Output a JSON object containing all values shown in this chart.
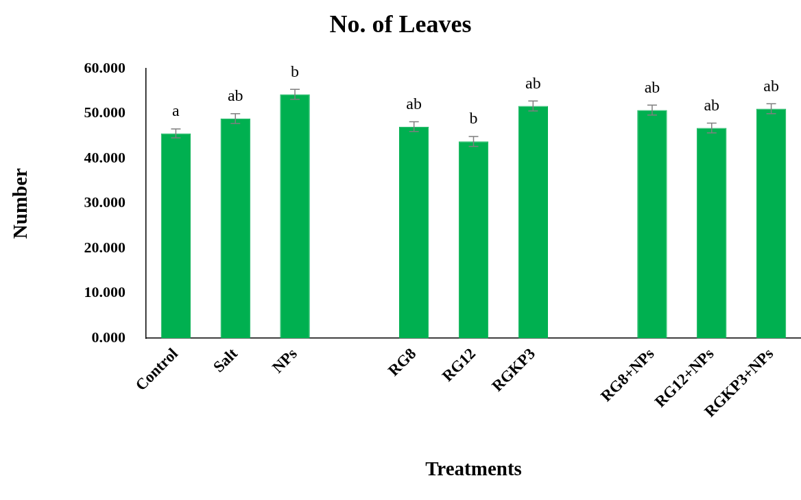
{
  "chart_data": {
    "type": "bar",
    "title": "No. of Leaves",
    "xlabel": "Treatments",
    "ylabel": "Number",
    "categories": [
      "Control",
      "Salt",
      "NPs",
      null,
      "RG8",
      "RG12",
      "RGKP3",
      null,
      "RG8+NPs",
      "RG12+NPs",
      "RGKP3+NPs"
    ],
    "values": [
      45.6,
      48.9,
      54.3,
      null,
      47.1,
      43.8,
      51.7,
      null,
      50.8,
      46.8,
      51.1
    ],
    "errors": [
      1.0,
      1.1,
      1.1,
      null,
      1.1,
      1.1,
      1.1,
      null,
      1.1,
      1.1,
      1.1
    ],
    "value_labels": [
      "a",
      "ab",
      "b",
      null,
      "ab",
      "b",
      "ab",
      null,
      "ab",
      "ab",
      "ab"
    ],
    "color": "#00b050",
    "ylim": [
      0,
      60
    ],
    "yticks": [
      {
        "value": 0,
        "label": "0.000"
      },
      {
        "value": 10,
        "label": "10.000"
      },
      {
        "value": 20,
        "label": "20.000"
      },
      {
        "value": 30,
        "label": "30.000"
      },
      {
        "value": 40,
        "label": "40.000"
      },
      {
        "value": 50,
        "label": "50.000"
      },
      {
        "value": 60,
        "label": "60.000"
      }
    ]
  }
}
